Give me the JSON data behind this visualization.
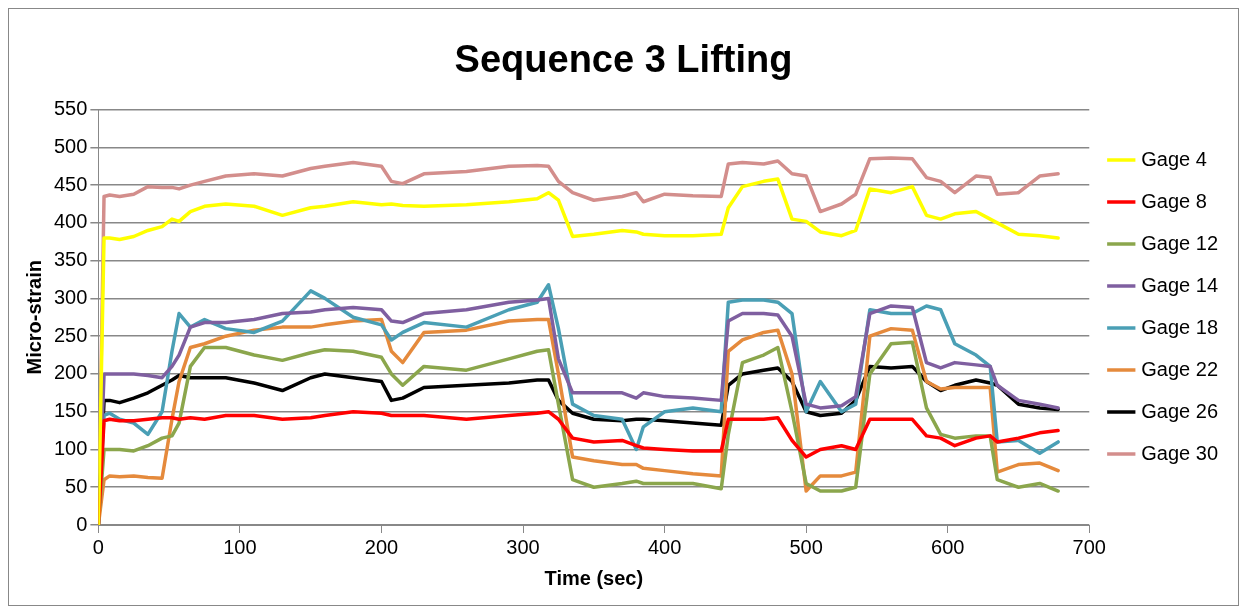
{
  "chart_data": {
    "type": "line",
    "title": "Sequence 3 Lifting",
    "xlabel": "Time (sec)",
    "ylabel": "Micro-strain",
    "x": [
      0,
      4,
      8,
      15,
      25,
      35,
      45,
      52,
      57,
      65,
      75,
      90,
      110,
      130,
      150,
      160,
      180,
      200,
      207,
      215,
      230,
      260,
      290,
      310,
      318,
      325,
      335,
      350,
      370,
      380,
      385,
      400,
      420,
      440,
      445,
      455,
      470,
      480,
      490,
      500,
      510,
      525,
      535,
      545,
      560,
      575,
      585,
      595,
      605,
      620,
      630,
      635,
      650,
      665,
      678
    ],
    "series": [
      {
        "name": "Gage 4",
        "color": "#ffff00",
        "values": [
          0,
          380,
          380,
          378,
          382,
          390,
          395,
          405,
          402,
          415,
          422,
          425,
          422,
          410,
          420,
          422,
          428,
          424,
          425,
          423,
          422,
          424,
          428,
          432,
          440,
          430,
          382,
          385,
          390,
          388,
          385,
          383,
          383,
          385,
          420,
          448,
          455,
          458,
          405,
          402,
          388,
          383,
          390,
          445,
          440,
          448,
          410,
          405,
          412,
          415,
          405,
          400,
          385,
          383,
          380
        ]
      },
      {
        "name": "Gage 8",
        "color": "#ff0000",
        "values": [
          0,
          138,
          140,
          138,
          138,
          140,
          142,
          142,
          140,
          142,
          140,
          145,
          145,
          140,
          142,
          145,
          150,
          148,
          145,
          145,
          145,
          140,
          145,
          148,
          150,
          140,
          115,
          110,
          112,
          105,
          102,
          100,
          98,
          98,
          140,
          140,
          140,
          142,
          112,
          90,
          100,
          105,
          100,
          140,
          140,
          140,
          118,
          115,
          105,
          115,
          118,
          110,
          115,
          122,
          125
        ]
      },
      {
        "name": "Gage 12",
        "color": "#8ba64c",
        "values": [
          0,
          100,
          100,
          100,
          98,
          105,
          115,
          118,
          135,
          210,
          235,
          235,
          225,
          218,
          228,
          232,
          230,
          222,
          200,
          185,
          210,
          205,
          220,
          230,
          232,
          160,
          60,
          50,
          55,
          58,
          55,
          55,
          55,
          48,
          120,
          215,
          225,
          235,
          150,
          55,
          45,
          45,
          50,
          200,
          240,
          242,
          155,
          120,
          115,
          118,
          118,
          60,
          50,
          55,
          45
        ]
      },
      {
        "name": "Gage 14",
        "color": "#7f5fa0",
        "values": [
          0,
          200,
          200,
          200,
          200,
          198,
          195,
          210,
          225,
          262,
          268,
          268,
          272,
          280,
          282,
          285,
          288,
          285,
          270,
          268,
          280,
          285,
          295,
          298,
          300,
          220,
          175,
          175,
          175,
          168,
          175,
          170,
          168,
          165,
          270,
          280,
          280,
          278,
          250,
          160,
          155,
          158,
          170,
          280,
          290,
          288,
          215,
          208,
          215,
          212,
          210,
          185,
          165,
          160,
          155
        ]
      },
      {
        "name": "Gage 18",
        "color": "#4a9fb5",
        "values": [
          0,
          145,
          148,
          140,
          135,
          120,
          150,
          230,
          280,
          262,
          272,
          260,
          255,
          270,
          310,
          300,
          275,
          265,
          245,
          255,
          268,
          262,
          285,
          295,
          318,
          260,
          160,
          145,
          140,
          100,
          130,
          150,
          155,
          150,
          295,
          298,
          298,
          295,
          280,
          150,
          190,
          150,
          160,
          285,
          280,
          280,
          290,
          285,
          240,
          225,
          210,
          110,
          112,
          95,
          110
        ]
      },
      {
        "name": "Gage 22",
        "color": "#e58a3c",
        "values": [
          0,
          60,
          65,
          64,
          65,
          63,
          62,
          140,
          190,
          235,
          240,
          250,
          258,
          262,
          262,
          265,
          270,
          272,
          230,
          215,
          255,
          258,
          270,
          272,
          272,
          200,
          90,
          85,
          80,
          80,
          75,
          72,
          68,
          65,
          230,
          245,
          255,
          258,
          200,
          45,
          65,
          65,
          70,
          250,
          260,
          258,
          190,
          180,
          182,
          182,
          182,
          70,
          80,
          82,
          72
        ]
      },
      {
        "name": "Gage 26",
        "color": "#000000",
        "values": [
          0,
          165,
          165,
          162,
          168,
          175,
          185,
          192,
          198,
          195,
          195,
          195,
          188,
          178,
          195,
          200,
          195,
          190,
          165,
          168,
          182,
          185,
          188,
          192,
          192,
          165,
          148,
          140,
          138,
          140,
          140,
          138,
          135,
          132,
          185,
          200,
          205,
          208,
          190,
          150,
          145,
          148,
          165,
          210,
          208,
          210,
          190,
          178,
          185,
          192,
          188,
          185,
          160,
          155,
          153
        ]
      },
      {
        "name": "Gage 30",
        "color": "#d38e8c",
        "values": [
          0,
          435,
          437,
          435,
          438,
          448,
          447,
          447,
          445,
          450,
          455,
          462,
          465,
          462,
          472,
          475,
          480,
          475,
          455,
          452,
          465,
          468,
          475,
          476,
          475,
          455,
          440,
          430,
          435,
          440,
          428,
          438,
          436,
          435,
          478,
          480,
          478,
          482,
          465,
          462,
          415,
          425,
          438,
          485,
          486,
          485,
          460,
          455,
          440,
          462,
          460,
          438,
          440,
          462,
          465
        ]
      }
    ],
    "xlim": [
      0,
      700
    ],
    "xticks": [
      0,
      100,
      200,
      300,
      400,
      500,
      600,
      700
    ],
    "ylim": [
      0,
      550
    ],
    "yticks": [
      0,
      50,
      100,
      150,
      200,
      250,
      300,
      350,
      400,
      450,
      500,
      550
    ],
    "grid": "y",
    "legend": "right",
    "marker": "none",
    "line_style": "solid"
  }
}
